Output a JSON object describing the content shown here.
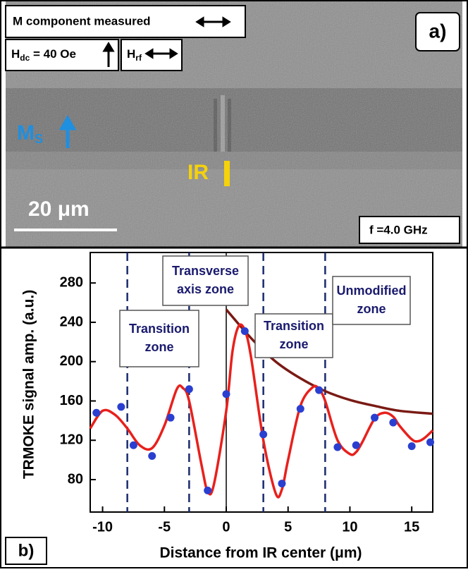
{
  "image_panel": {
    "label": "a)",
    "header": "M component measured",
    "hdc": {
      "base": "H",
      "sub": "dc",
      "text": " = 40 Oe"
    },
    "hrf": {
      "base": "H",
      "sub": "rf"
    },
    "ms": {
      "base": "M",
      "sub": "S"
    },
    "ir": "IR",
    "scale_bar": "20 μm",
    "frequency": "f =4.0 GHz"
  },
  "chart_data": {
    "type": "scatter",
    "panel_label": "b)",
    "xlabel": "Distance from IR center (μm)",
    "ylabel": "TRMOKE signal amp. (a.u.)",
    "xlim": [
      -11,
      16.7
    ],
    "ylim": [
      47,
      311
    ],
    "xticks": [
      -10,
      -5,
      0,
      5,
      10,
      15
    ],
    "yticks": [
      80,
      120,
      160,
      200,
      240,
      280
    ],
    "points": {
      "color": "#2a3fd0",
      "x": [
        -10.5,
        -8.5,
        -7.5,
        -6,
        -4.5,
        -3,
        -1.5,
        0,
        1.5,
        3,
        4.5,
        6,
        7.5,
        9,
        10.5,
        12,
        13.5,
        15,
        16.5
      ],
      "values": [
        148,
        154,
        115,
        104,
        143,
        172,
        69,
        167,
        231,
        126,
        76,
        152,
        171,
        113,
        115,
        143,
        138,
        114,
        118
      ]
    },
    "fit": {
      "color": "#e8201c",
      "x": [
        -11,
        -10,
        -9,
        -8,
        -7,
        -6,
        -5,
        -4,
        -3.5,
        -3,
        -2,
        -1.5,
        -1,
        0,
        0.5,
        1,
        1.5,
        2,
        3,
        4,
        4.5,
        5,
        6,
        7,
        7.5,
        8,
        9,
        10,
        10.5,
        11,
        12,
        12.8,
        13.5,
        14,
        15,
        15.5,
        16,
        16.7
      ],
      "values": [
        132,
        150,
        146,
        132,
        115,
        112,
        135,
        172,
        173,
        160,
        95,
        68,
        75,
        150,
        210,
        236,
        232,
        205,
        120,
        66,
        70,
        100,
        155,
        174,
        172,
        160,
        120,
        106,
        108,
        118,
        142,
        148,
        144,
        135,
        121,
        119,
        122,
        130
      ]
    },
    "envelope": {
      "color": "#7a1a14",
      "x": [
        0,
        2,
        4,
        6,
        8,
        10,
        12,
        14,
        16.7
      ],
      "values": [
        253,
        224,
        200,
        183,
        170,
        161,
        155,
        150,
        147
      ]
    },
    "zone_lines": [
      -8,
      -3,
      3,
      8
    ],
    "center_line": 0,
    "annotations": [
      [
        "Transition",
        "zone"
      ],
      [
        "Transverse",
        "axis zone"
      ],
      [
        "Transition",
        "zone"
      ],
      [
        "Unmodified",
        "zone"
      ]
    ]
  }
}
